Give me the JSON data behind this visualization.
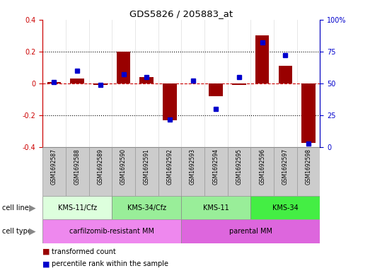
{
  "title": "GDS5826 / 205883_at",
  "samples": [
    "GSM1692587",
    "GSM1692588",
    "GSM1692589",
    "GSM1692590",
    "GSM1692591",
    "GSM1692592",
    "GSM1692593",
    "GSM1692594",
    "GSM1692595",
    "GSM1692596",
    "GSM1692597",
    "GSM1692598"
  ],
  "transformed_count": [
    0.01,
    0.03,
    -0.01,
    0.2,
    0.04,
    -0.23,
    0.0,
    -0.08,
    -0.01,
    0.3,
    0.11,
    -0.37
  ],
  "percentile_rank": [
    51,
    60,
    49,
    57,
    55,
    22,
    52,
    30,
    55,
    82,
    72,
    3
  ],
  "ylim_left": [
    -0.4,
    0.4
  ],
  "ylim_right": [
    0,
    100
  ],
  "yticks_left": [
    -0.4,
    -0.2,
    0.0,
    0.2,
    0.4
  ],
  "yticks_right": [
    0,
    25,
    50,
    75,
    100
  ],
  "bar_color": "#990000",
  "dot_color": "#0000cc",
  "zero_line_color": "#cc0000",
  "cell_line_groups": [
    {
      "label": "KMS-11/Cfz",
      "start": 0,
      "end": 3,
      "color": "#ddffdd"
    },
    {
      "label": "KMS-34/Cfz",
      "start": 3,
      "end": 6,
      "color": "#99ee99"
    },
    {
      "label": "KMS-11",
      "start": 6,
      "end": 9,
      "color": "#99ee99"
    },
    {
      "label": "KMS-34",
      "start": 9,
      "end": 12,
      "color": "#44ee44"
    }
  ],
  "cell_type_groups": [
    {
      "label": "carfilzomib-resistant MM",
      "start": 0,
      "end": 6,
      "color": "#ee88ee"
    },
    {
      "label": "parental MM",
      "start": 6,
      "end": 12,
      "color": "#dd66dd"
    }
  ],
  "sample_box_color": "#cccccc",
  "sample_box_edge": "#999999",
  "legend_bar_label": "transformed count",
  "legend_dot_label": "percentile rank within the sample"
}
